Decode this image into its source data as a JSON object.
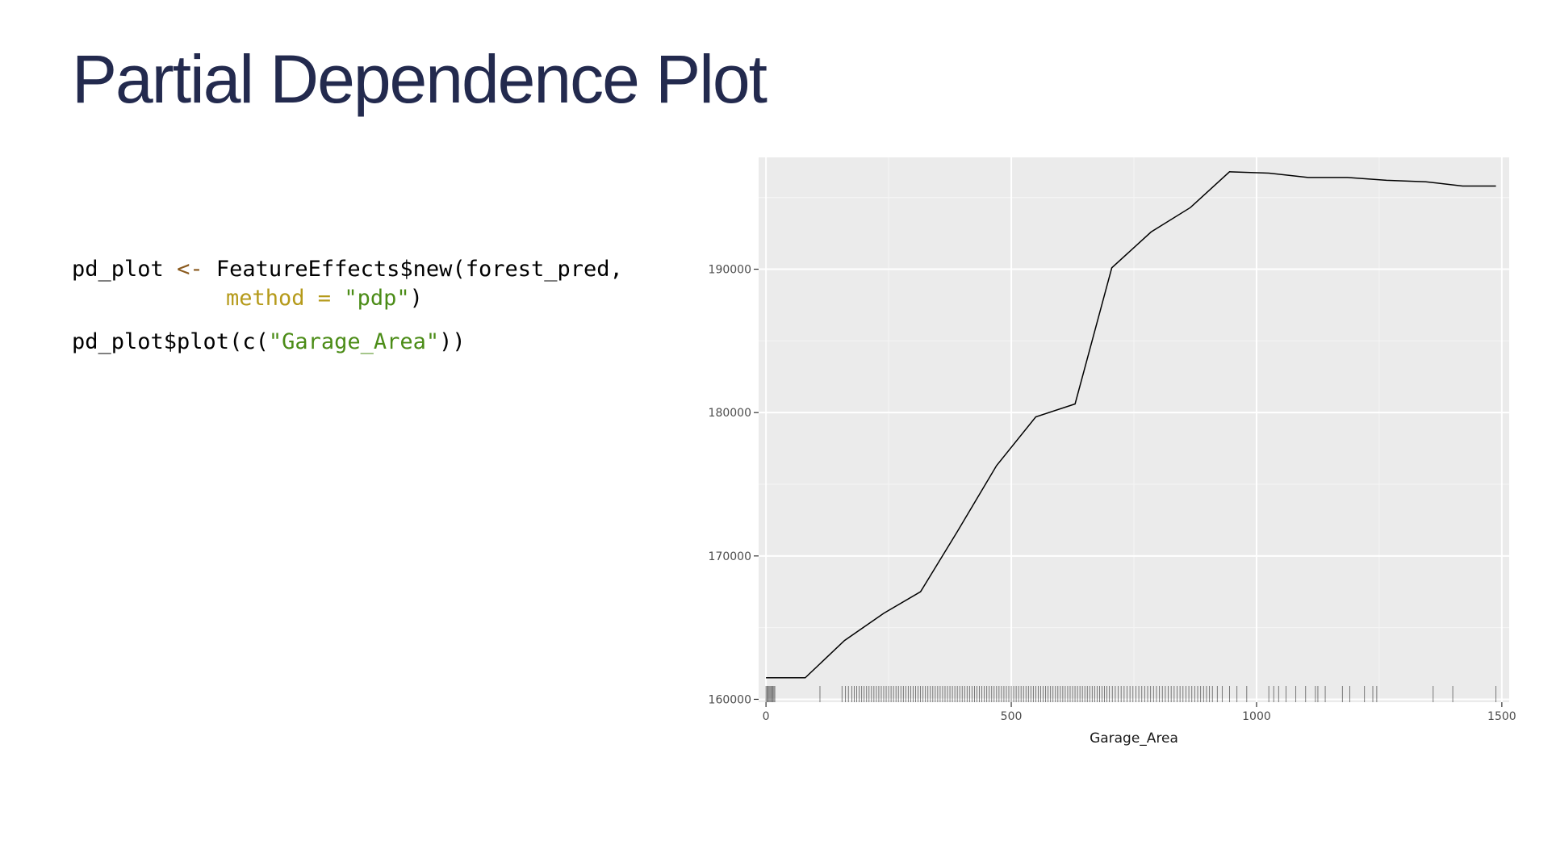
{
  "slide": {
    "title": "Partial Dependence Plot"
  },
  "code": {
    "line1": {
      "var": "pd_plot",
      "op": "<-",
      "call": "FeatureEffects$new(forest_pred,"
    },
    "line2": {
      "arg": "method =",
      "str": "\"pdp\"",
      "close": ")"
    },
    "line3": {
      "prefix": "pd_plot$plot(c(",
      "str": "\"Garage_Area\"",
      "suffix": "))"
    }
  },
  "chart_data": {
    "type": "line",
    "title": "",
    "xlabel": "Garage_Area",
    "ylabel": "",
    "xlim": [
      -15,
      1515
    ],
    "ylim": [
      159800,
      197800
    ],
    "x_ticks": [
      0,
      500,
      1000,
      1500
    ],
    "x_tick_labels": [
      "0",
      "500",
      "1000",
      "1500"
    ],
    "y_ticks": [
      160000,
      170000,
      180000,
      190000
    ],
    "y_tick_labels": [
      "160000",
      "170000",
      "180000",
      "190000"
    ],
    "grid": true,
    "panel_background": "#ebebeb",
    "line_color": "#000000",
    "series": [
      {
        "x": [
          0,
          80,
          160,
          240,
          315,
          390,
          470,
          550,
          630,
          705,
          785,
          865,
          945,
          1025,
          1105,
          1185,
          1265,
          1345,
          1420,
          1488
        ],
        "y": [
          161500,
          161500,
          164100,
          166000,
          167500,
          171700,
          176300,
          179700,
          180600,
          190100,
          192600,
          194300,
          196800,
          196700,
          196400,
          196400,
          196200,
          196100,
          195800,
          195800
        ]
      }
    ],
    "rug": [
      0,
      2,
      4,
      6,
      8,
      10,
      12,
      14,
      16,
      18,
      110,
      155,
      162,
      168,
      175,
      180,
      185,
      190,
      195,
      200,
      205,
      210,
      215,
      220,
      225,
      230,
      235,
      240,
      245,
      250,
      255,
      260,
      265,
      270,
      275,
      280,
      285,
      290,
      295,
      300,
      305,
      310,
      315,
      320,
      325,
      330,
      335,
      340,
      345,
      350,
      355,
      360,
      365,
      370,
      375,
      380,
      385,
      390,
      395,
      400,
      405,
      410,
      415,
      420,
      425,
      430,
      435,
      440,
      445,
      450,
      455,
      460,
      465,
      470,
      475,
      480,
      485,
      490,
      495,
      500,
      505,
      510,
      515,
      520,
      525,
      530,
      535,
      540,
      545,
      550,
      555,
      560,
      565,
      570,
      575,
      580,
      585,
      590,
      595,
      600,
      605,
      610,
      615,
      620,
      625,
      630,
      635,
      640,
      645,
      650,
      655,
      660,
      665,
      670,
      675,
      680,
      685,
      690,
      695,
      700,
      706,
      712,
      718,
      724,
      730,
      736,
      742,
      748,
      754,
      760,
      766,
      772,
      778,
      784,
      790,
      796,
      802,
      808,
      814,
      820,
      826,
      832,
      838,
      844,
      850,
      856,
      862,
      868,
      874,
      880,
      886,
      892,
      898,
      904,
      910,
      920,
      930,
      945,
      960,
      980,
      1025,
      1035,
      1045,
      1060,
      1080,
      1100,
      1120,
      1125,
      1140,
      1175,
      1190,
      1220,
      1237,
      1245,
      1360,
      1400,
      1488
    ]
  }
}
